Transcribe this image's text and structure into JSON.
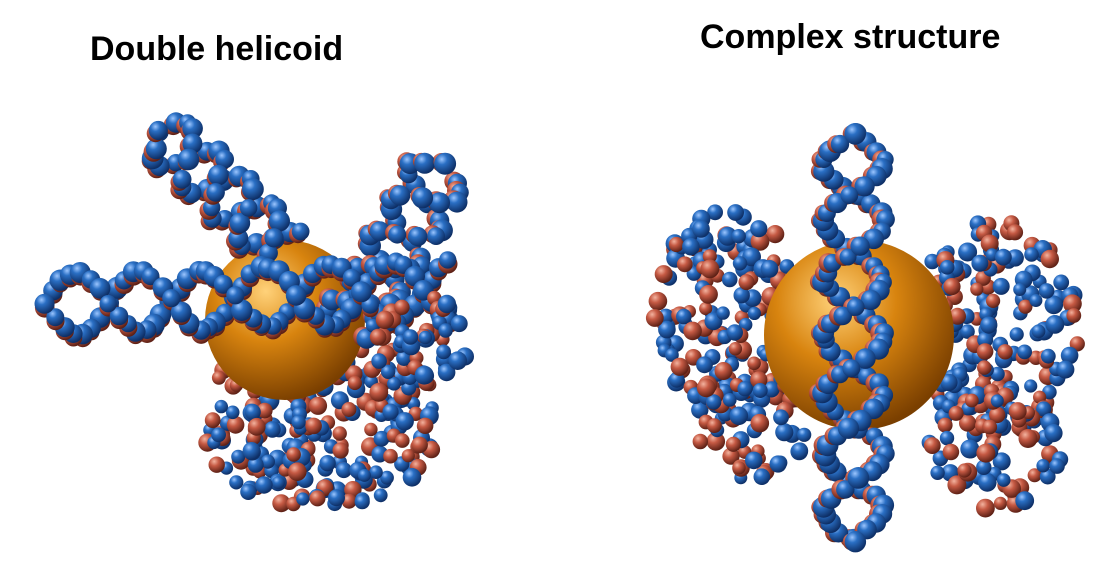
{
  "panels": [
    {
      "title": "Double helicoid"
    },
    {
      "title": "Complex structure"
    }
  ],
  "colors": {
    "blue_bead": "#2a6fc4",
    "red_bead": "#c65a44",
    "core_sphere": "#d8840f",
    "background": "#ffffff"
  }
}
